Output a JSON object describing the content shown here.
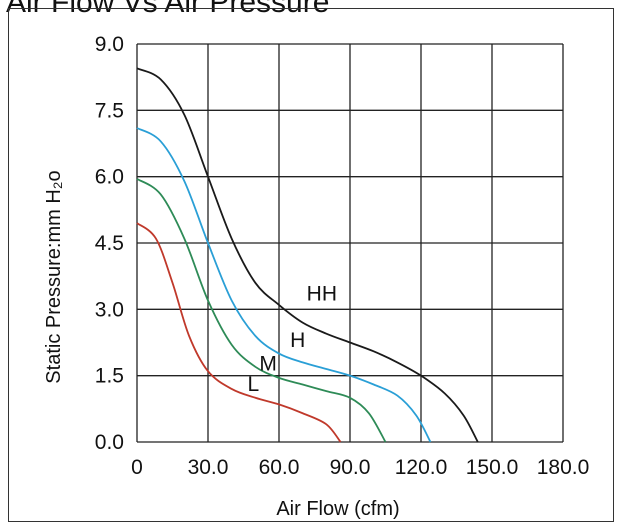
{
  "page": {
    "title": "Air Flow Vs Air Pressure"
  },
  "chart_data": {
    "type": "line",
    "title": "Air Flow Vs Air Pressure",
    "xlabel": "Air Flow (cfm)",
    "ylabel": "Static Pressure:mm H₂o",
    "xlim": [
      0,
      180
    ],
    "ylim": [
      0,
      9
    ],
    "grid": true,
    "x_tick_labels": [
      "0",
      "30.0",
      "60.0",
      "90.0",
      "120.0",
      "150.0",
      "180.0"
    ],
    "y_tick_labels": [
      "0.0",
      "1.5",
      "3.0",
      "4.5",
      "6.0",
      "7.5",
      "9.0"
    ],
    "x_ticks": [
      0,
      30,
      60,
      90,
      120,
      150,
      180
    ],
    "y_ticks": [
      0,
      1.5,
      3,
      4.5,
      6,
      7.5,
      9
    ],
    "series": [
      {
        "name": "HH",
        "color": "#1a1a1a",
        "points": [
          [
            0,
            8.45
          ],
          [
            10,
            8.2
          ],
          [
            20,
            7.4
          ],
          [
            30,
            6.0
          ],
          [
            40,
            4.6
          ],
          [
            50,
            3.6
          ],
          [
            60,
            3.1
          ],
          [
            70,
            2.7
          ],
          [
            80,
            2.45
          ],
          [
            90,
            2.25
          ],
          [
            100,
            2.05
          ],
          [
            110,
            1.8
          ],
          [
            120,
            1.5
          ],
          [
            130,
            1.1
          ],
          [
            138,
            0.6
          ],
          [
            144,
            0
          ]
        ],
        "label_at": [
          70,
          3.2
        ]
      },
      {
        "name": "H",
        "color": "#2a9fd6",
        "points": [
          [
            0,
            7.1
          ],
          [
            10,
            6.8
          ],
          [
            20,
            5.9
          ],
          [
            30,
            4.5
          ],
          [
            40,
            3.2
          ],
          [
            50,
            2.4
          ],
          [
            60,
            2.0
          ],
          [
            70,
            1.8
          ],
          [
            80,
            1.65
          ],
          [
            90,
            1.5
          ],
          [
            100,
            1.3
          ],
          [
            110,
            1.05
          ],
          [
            118,
            0.6
          ],
          [
            124,
            0
          ]
        ],
        "label_at": [
          63,
          2.15
        ]
      },
      {
        "name": "M",
        "color": "#2e8b57",
        "points": [
          [
            0,
            5.95
          ],
          [
            10,
            5.6
          ],
          [
            20,
            4.6
          ],
          [
            30,
            3.2
          ],
          [
            40,
            2.2
          ],
          [
            50,
            1.7
          ],
          [
            60,
            1.45
          ],
          [
            70,
            1.3
          ],
          [
            80,
            1.15
          ],
          [
            90,
            1.0
          ],
          [
            98,
            0.65
          ],
          [
            105,
            0
          ]
        ],
        "label_at": [
          50,
          1.62
        ]
      },
      {
        "name": "L",
        "color": "#c0392b",
        "points": [
          [
            0,
            4.95
          ],
          [
            8,
            4.6
          ],
          [
            15,
            3.6
          ],
          [
            22,
            2.4
          ],
          [
            30,
            1.6
          ],
          [
            40,
            1.2
          ],
          [
            50,
            1.0
          ],
          [
            60,
            0.85
          ],
          [
            70,
            0.65
          ],
          [
            80,
            0.4
          ],
          [
            86,
            0
          ]
        ],
        "label_at": [
          45,
          1.15
        ]
      }
    ]
  }
}
